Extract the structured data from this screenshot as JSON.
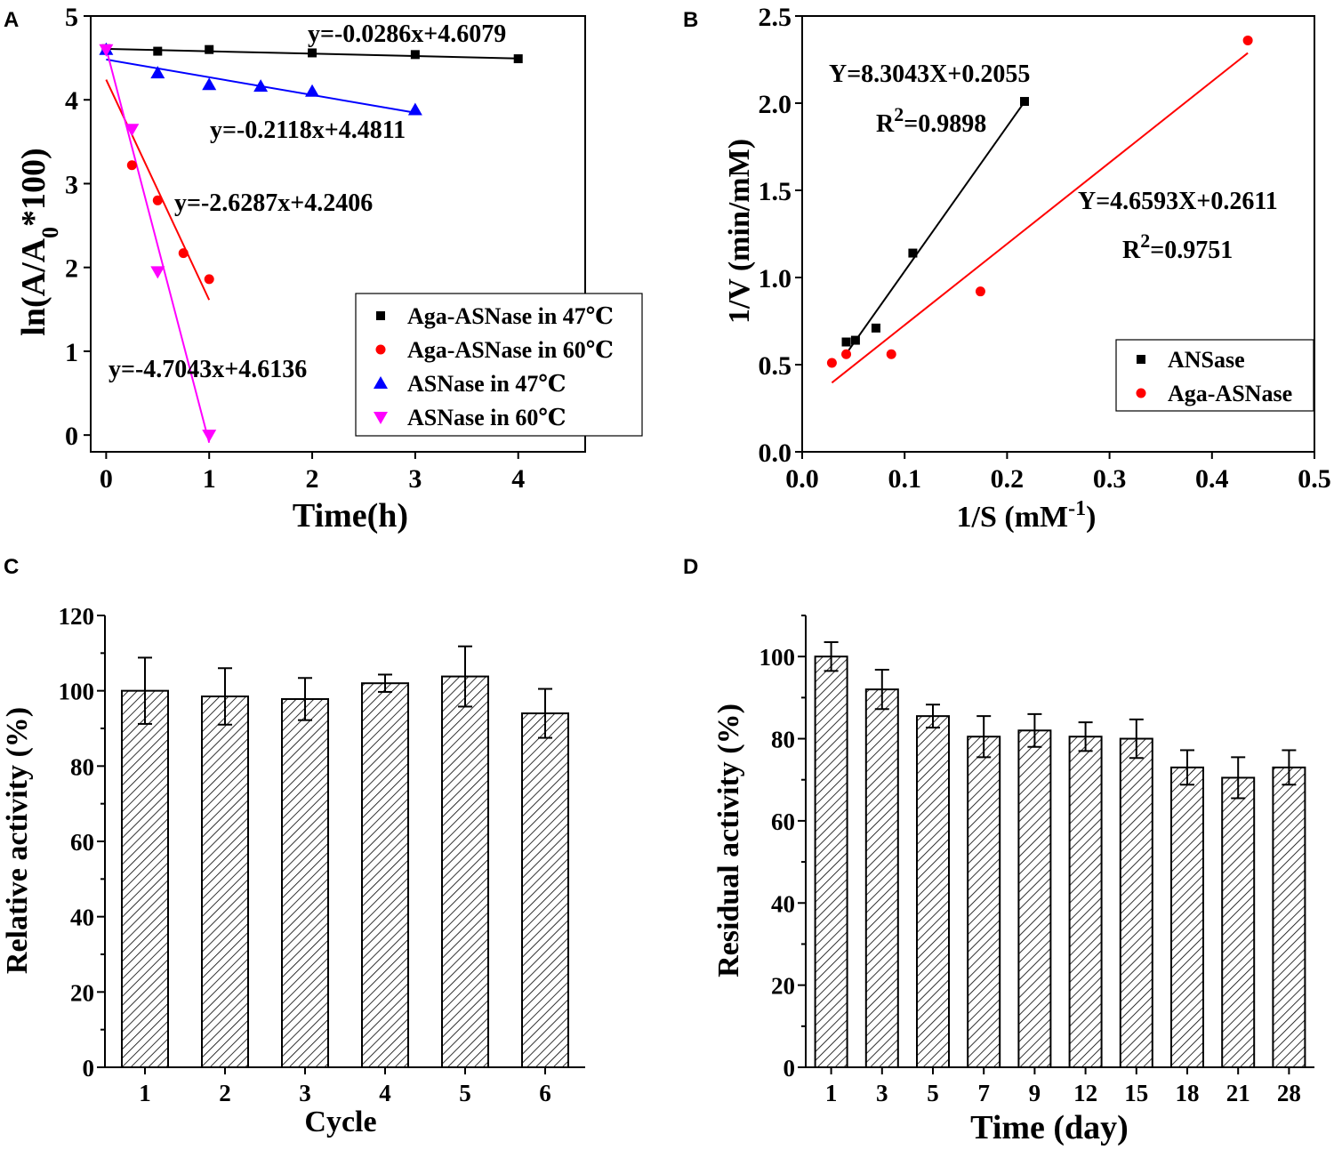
{
  "colors": {
    "black": "#000000",
    "red": "#ff0000",
    "blue": "#0000ff",
    "magenta": "#ff00ff"
  },
  "chart_data": [
    {
      "panel": "A",
      "type": "scatter",
      "xlabel": "Time(h)",
      "ylabel": "ln(A/A0*100)",
      "ylabel_parts": {
        "before": "ln(A/A",
        "sub": "0",
        "after": "*100)"
      },
      "xlim": [
        -0.15,
        4.65
      ],
      "ylim": [
        -0.2,
        5
      ],
      "xticks": [
        0,
        1,
        2,
        3,
        4
      ],
      "yticks": [
        0,
        1,
        2,
        3,
        4,
        5
      ],
      "legend_position": "bottom-right",
      "series": [
        {
          "name": "Aga-ASNase in 47℃",
          "color": "#000000",
          "marker": "square",
          "x": [
            0,
            0.5,
            1,
            2,
            3,
            4
          ],
          "y": [
            4.61,
            4.58,
            4.6,
            4.56,
            4.54,
            4.49
          ],
          "fit": {
            "slope": -0.0286,
            "intercept": 4.6079,
            "x_range": [
              0,
              4
            ]
          },
          "equation": "y=-0.0286x+4.6079"
        },
        {
          "name": "Aga-ASNase in 60℃",
          "color": "#ff0000",
          "marker": "circle",
          "x": [
            0.25,
            0.5,
            0.75,
            1
          ],
          "y": [
            3.22,
            2.8,
            2.17,
            1.86
          ],
          "fit": {
            "slope": -2.6287,
            "intercept": 4.2406,
            "x_range": [
              0,
              1
            ]
          },
          "equation": "y=-2.6287x+4.2406"
        },
        {
          "name": "ASNase in 47℃",
          "color": "#0000ff",
          "marker": "triangle-up",
          "x": [
            0,
            0.5,
            1,
            1.5,
            2,
            3
          ],
          "y": [
            4.6,
            4.32,
            4.18,
            4.16,
            4.1,
            3.88
          ],
          "fit": {
            "slope": -0.2118,
            "intercept": 4.4811,
            "x_range": [
              0,
              3
            ]
          },
          "equation": "y=-0.2118x+4.4811"
        },
        {
          "name": "ASNase in 60℃",
          "color": "#ff00ff",
          "marker": "triangle-down",
          "x": [
            0,
            0.25,
            0.5,
            1
          ],
          "y": [
            4.6,
            3.65,
            1.95,
            0
          ],
          "fit": {
            "slope": -4.7043,
            "intercept": 4.6136,
            "x_range": [
              0,
              1
            ]
          },
          "equation": "y=-4.7043x+4.6136"
        }
      ]
    },
    {
      "panel": "B",
      "type": "scatter",
      "xlabel": "1/S (mM-1)",
      "xlabel_parts": {
        "before": "1/S (mM",
        "sup": "-1",
        "after": ")"
      },
      "ylabel": "1/V (min/mM)",
      "xlim": [
        0,
        0.5
      ],
      "ylim": [
        0,
        2.5
      ],
      "xticks": [
        0.0,
        0.1,
        0.2,
        0.3,
        0.4,
        0.5
      ],
      "xtick_labels": [
        "0.0",
        "0.1",
        "0.2",
        "0.3",
        "0.4",
        "0.5"
      ],
      "yticks": [
        0.0,
        0.5,
        1.0,
        1.5,
        2.0,
        2.5
      ],
      "ytick_labels": [
        "0.0",
        "0.5",
        "1.0",
        "1.5",
        "2.0",
        "2.5"
      ],
      "legend_position": "bottom-right",
      "series": [
        {
          "name": "ANSase",
          "color": "#000000",
          "marker": "square",
          "x": [
            0.043,
            0.052,
            0.072,
            0.108,
            0.217
          ],
          "y": [
            0.63,
            0.64,
            0.71,
            1.14,
            2.01
          ],
          "fit": {
            "slope": 8.3043,
            "intercept": 0.2055,
            "x_range": [
              0.043,
              0.217
            ]
          },
          "equation": "Y=8.3043X+0.2055",
          "r2": {
            "before": "R",
            "sup": "2",
            "after": "=0.9898"
          }
        },
        {
          "name": "Aga-ASNase",
          "color": "#ff0000",
          "marker": "circle",
          "x": [
            0.029,
            0.043,
            0.087,
            0.174,
            0.435
          ],
          "y": [
            0.51,
            0.56,
            0.56,
            0.92,
            2.36
          ],
          "fit": {
            "slope": 4.6593,
            "intercept": 0.2611,
            "x_range": [
              0.029,
              0.435
            ]
          },
          "equation": "Y=4.6593X+0.2611",
          "r2": {
            "before": "R",
            "sup": "2",
            "after": "=0.9751"
          }
        }
      ]
    },
    {
      "panel": "C",
      "type": "bar",
      "xlabel": "Cycle",
      "ylabel": "Relative activity (%)",
      "ylim": [
        0,
        120
      ],
      "yticks": [
        0,
        20,
        40,
        60,
        80,
        100,
        120
      ],
      "categories": [
        "1",
        "2",
        "3",
        "4",
        "5",
        "6"
      ],
      "values": [
        100,
        98.5,
        97.8,
        102,
        103.8,
        94
      ],
      "errors": [
        8.8,
        7.5,
        5.6,
        2.3,
        8,
        6.5
      ]
    },
    {
      "panel": "D",
      "type": "bar",
      "xlabel": "Time (day)",
      "ylabel": "Residual activity (%)",
      "ylim": [
        0,
        110
      ],
      "yticks": [
        0,
        20,
        40,
        60,
        80,
        100
      ],
      "categories": [
        "1",
        "3",
        "5",
        "7",
        "9",
        "12",
        "15",
        "18",
        "21",
        "28"
      ],
      "values": [
        100,
        92,
        85.5,
        80.5,
        82,
        80.5,
        80,
        73,
        70.5,
        73
      ],
      "errors": [
        3.5,
        4.8,
        2.8,
        5,
        4,
        3.5,
        4.7,
        4.2,
        5,
        4.2
      ]
    }
  ]
}
